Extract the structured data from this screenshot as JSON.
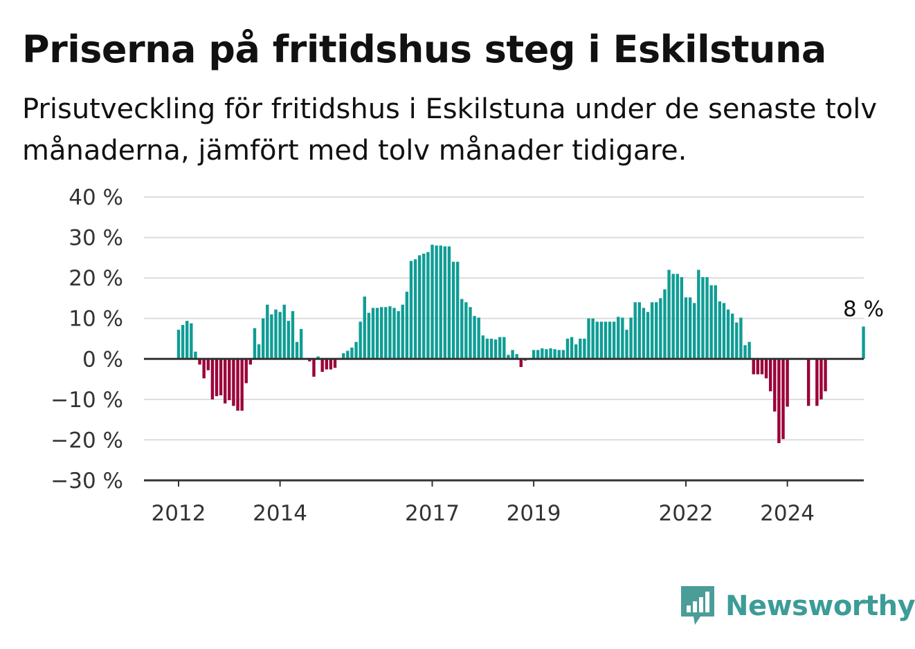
{
  "title": "Priserna på fritidshus steg i Eskilstuna",
  "subtitle": "Prisutveckling för fritidshus i Eskilstuna under de senaste tolv månaderna, jämfört med tolv månader tidigare.",
  "brand": {
    "name": "Newsworthy",
    "icon": "newsworthy-logo-icon"
  },
  "colors": {
    "positive": "#0f9d95",
    "negative": "#9b0039",
    "grid": "#dcdcdc",
    "axis": "#333333"
  },
  "chart_data": {
    "type": "bar",
    "title": "Priserna på fritidshus steg i Eskilstuna",
    "xlabel": "",
    "ylabel": "",
    "ylim": [
      -30,
      40
    ],
    "y_ticks": [
      40,
      30,
      20,
      10,
      0,
      -10,
      -20,
      -30
    ],
    "y_tick_labels": [
      "40 %",
      "30 %",
      "20 %",
      "10 %",
      "0 %",
      "−10 %",
      "−20 %",
      "−30 %"
    ],
    "x_tick_labels": [
      "2012",
      "2014",
      "2017",
      "2019",
      "2022",
      "2024"
    ],
    "x_tick_positions": [
      2012,
      2014,
      2017,
      2019,
      2022,
      2024
    ],
    "start": 2012,
    "step_months": 1,
    "grid": true,
    "annotation": {
      "text": "8 %",
      "value": 8
    },
    "values": [
      7.2,
      8.4,
      9.4,
      8.8,
      1.8,
      -1.4,
      -4.8,
      -2.8,
      -10.0,
      -9.2,
      -9.0,
      -11.0,
      -10.2,
      -11.6,
      -12.8,
      -12.8,
      -6.0,
      -1.4,
      7.6,
      3.6,
      10.0,
      13.4,
      11.0,
      12.2,
      11.6,
      13.4,
      9.4,
      11.8,
      4.2,
      7.4,
      0.0,
      -0.6,
      -4.4,
      0.6,
      -3.2,
      -2.6,
      -2.6,
      -2.2,
      0.0,
      1.4,
      2.0,
      2.8,
      4.2,
      9.2,
      15.4,
      11.4,
      12.6,
      12.6,
      12.8,
      12.8,
      13.0,
      12.6,
      11.8,
      13.4,
      16.6,
      24.2,
      24.6,
      25.6,
      26.0,
      26.4,
      28.2,
      28.0,
      28.0,
      27.8,
      27.8,
      24.0,
      24.0,
      14.8,
      14.0,
      12.8,
      10.6,
      10.2,
      5.8,
      5.0,
      5.0,
      4.8,
      5.4,
      5.4,
      1.0,
      2.2,
      1.2,
      -2.0,
      -0.4,
      0.0,
      2.2,
      2.2,
      2.6,
      2.4,
      2.6,
      2.4,
      2.2,
      2.2,
      5.0,
      5.4,
      3.6,
      5.0,
      5.0,
      10.0,
      10.0,
      9.2,
      9.2,
      9.2,
      9.2,
      9.2,
      10.4,
      10.2,
      7.2,
      10.2,
      14.0,
      14.0,
      12.6,
      11.6,
      14.0,
      14.0,
      15.0,
      17.2,
      22.0,
      21.0,
      21.0,
      20.2,
      15.2,
      15.2,
      13.8,
      22.0,
      20.2,
      20.2,
      18.2,
      18.2,
      14.2,
      13.8,
      12.2,
      11.2,
      9.0,
      10.2,
      3.4,
      4.2,
      -3.8,
      -3.8,
      -3.8,
      -4.8,
      -8.0,
      -13.0,
      -20.8,
      -19.8,
      -11.8,
      0.0,
      0.0,
      0.0,
      0.0,
      -11.6,
      0.0,
      -11.6,
      -10.0,
      -8.0,
      0.0,
      0.0,
      0.0,
      0.0,
      0.0,
      0.0,
      0.0,
      0.0,
      8.0
    ]
  }
}
